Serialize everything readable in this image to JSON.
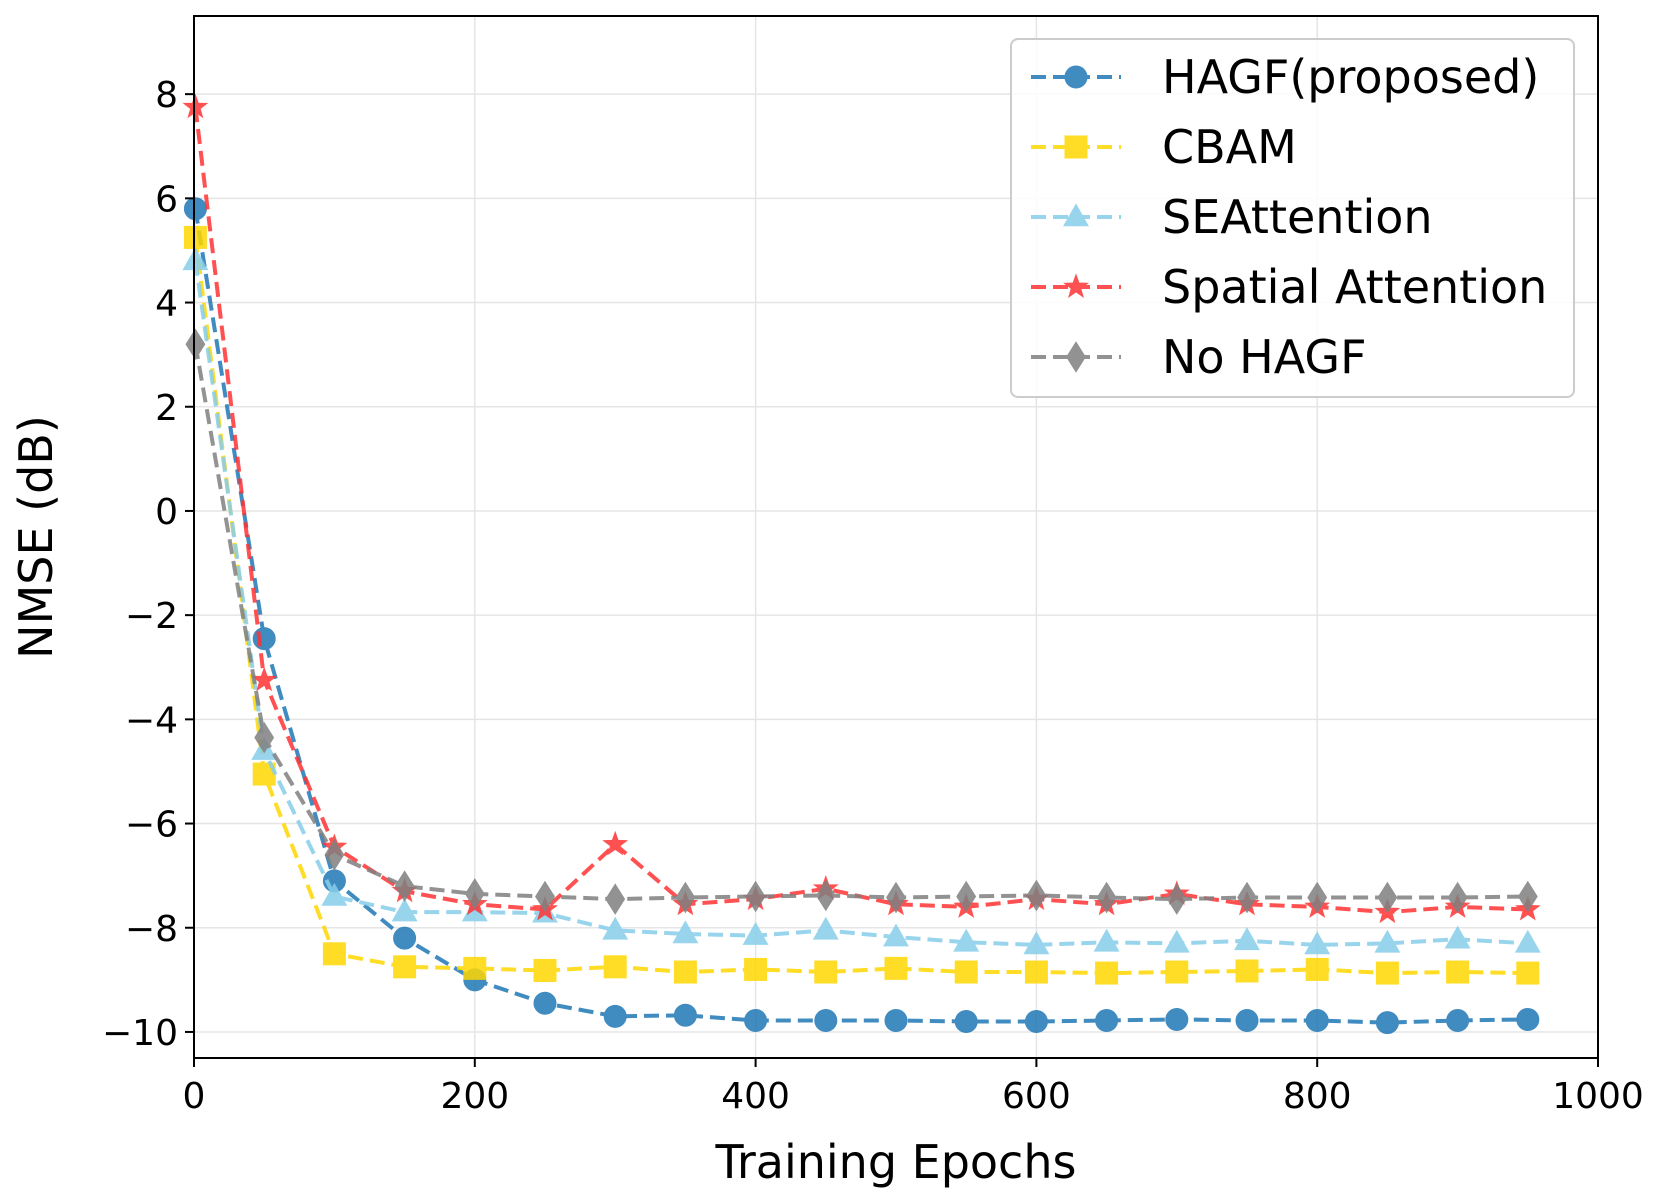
{
  "chart_data": {
    "type": "line",
    "title": "",
    "xlabel": "Training Epochs",
    "ylabel": "NMSE (dB)",
    "xlim": [
      0,
      1000
    ],
    "ylim": [
      -10.5,
      9.5
    ],
    "xticks": [
      0,
      200,
      400,
      600,
      800,
      1000
    ],
    "xtick_labels": [
      "0",
      "200",
      "400",
      "600",
      "800",
      "1000"
    ],
    "yticks": [
      8,
      6,
      4,
      2,
      0,
      -2,
      -4,
      -6,
      -8,
      -10
    ],
    "ytick_labels": [
      "8",
      "6",
      "4",
      "2",
      "0",
      "−2",
      "−4",
      "−6",
      "−8",
      "−10"
    ],
    "grid": true,
    "legend_position": "top-right",
    "x": [
      1,
      50,
      100,
      150,
      200,
      250,
      300,
      350,
      400,
      450,
      500,
      550,
      600,
      650,
      700,
      750,
      800,
      850,
      900,
      950
    ],
    "series": [
      {
        "name": "HAGF(proposed)",
        "color": "#1f77b4",
        "marker": "circle",
        "values": [
          5.8,
          -2.45,
          -7.1,
          -8.2,
          -9.0,
          -9.45,
          -9.7,
          -9.68,
          -9.78,
          -9.78,
          -9.78,
          -9.8,
          -9.8,
          -9.78,
          -9.76,
          -9.78,
          -9.78,
          -9.82,
          -9.78,
          -9.76
        ]
      },
      {
        "name": "CBAM",
        "color": "#ffd700",
        "marker": "square",
        "values": [
          5.25,
          -5.05,
          -8.5,
          -8.75,
          -8.78,
          -8.82,
          -8.75,
          -8.85,
          -8.8,
          -8.85,
          -8.78,
          -8.85,
          -8.85,
          -8.87,
          -8.85,
          -8.83,
          -8.8,
          -8.87,
          -8.85,
          -8.87
        ]
      },
      {
        "name": "SEAttention",
        "color": "#87ceeb",
        "marker": "triangle",
        "values": [
          4.8,
          -4.6,
          -7.4,
          -7.7,
          -7.7,
          -7.72,
          -8.05,
          -8.12,
          -8.15,
          -8.05,
          -8.18,
          -8.28,
          -8.33,
          -8.28,
          -8.3,
          -8.25,
          -8.33,
          -8.3,
          -8.22,
          -8.3
        ]
      },
      {
        "name": "Spatial Attention",
        "color": "#ff3333",
        "marker": "star",
        "values": [
          7.75,
          -3.25,
          -6.45,
          -7.3,
          -7.55,
          -7.65,
          -6.4,
          -7.55,
          -7.45,
          -7.25,
          -7.55,
          -7.6,
          -7.45,
          -7.55,
          -7.35,
          -7.55,
          -7.6,
          -7.7,
          -7.6,
          -7.65
        ]
      },
      {
        "name": "No HAGF",
        "color": "#808080",
        "marker": "diamond",
        "values": [
          3.2,
          -4.35,
          -6.6,
          -7.2,
          -7.35,
          -7.4,
          -7.45,
          -7.42,
          -7.4,
          -7.38,
          -7.42,
          -7.4,
          -7.38,
          -7.42,
          -7.45,
          -7.42,
          -7.42,
          -7.42,
          -7.42,
          -7.4
        ]
      }
    ]
  }
}
